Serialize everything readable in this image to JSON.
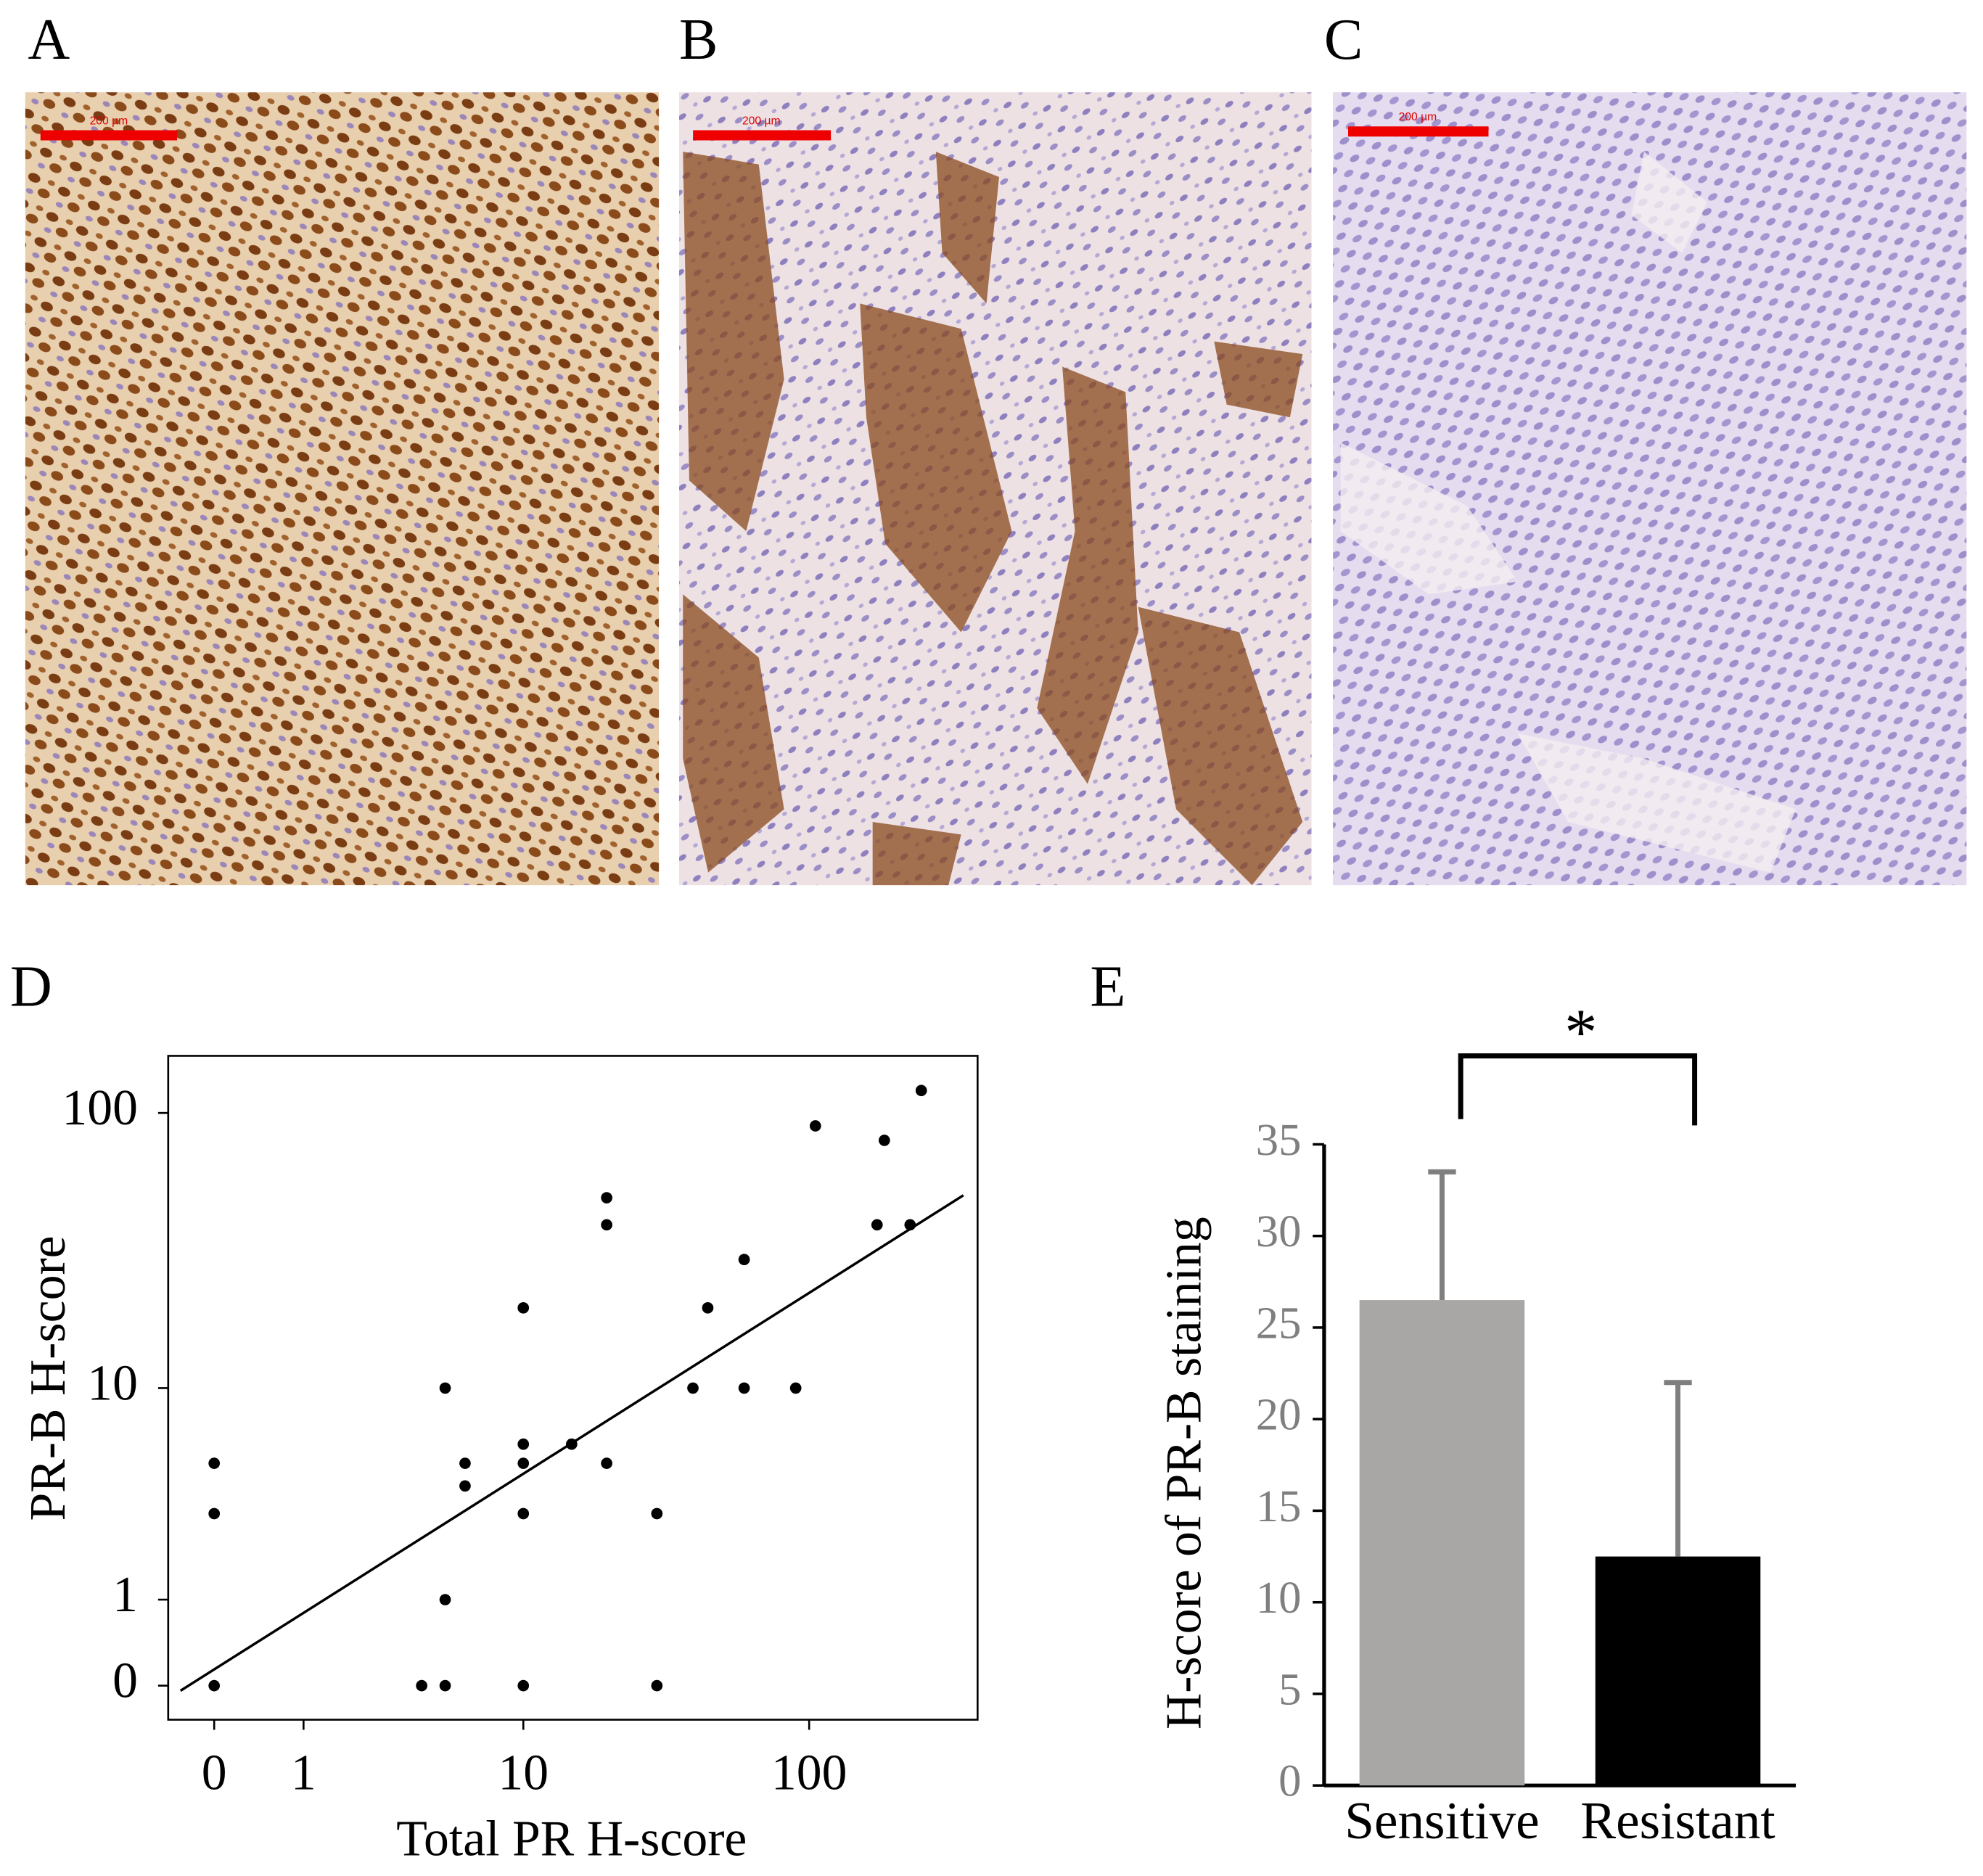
{
  "panels": [
    {
      "label": "A",
      "scale_bar": "200 µm"
    },
    {
      "label": "B",
      "scale_bar": "200 µm"
    },
    {
      "label": "C",
      "scale_bar": "200 µm"
    }
  ],
  "chart_data": [
    {
      "type": "scatter",
      "label": "D",
      "x_label": "Total PR H-score",
      "y_label": "PR-B H-score",
      "scale": "log1p",
      "color": "#000000",
      "x": [
        0,
        0,
        0,
        4,
        5,
        5,
        5,
        6,
        6,
        10,
        10,
        10,
        10,
        10,
        15,
        20,
        20,
        20,
        30,
        30,
        40,
        45,
        60,
        60,
        90,
        105,
        170,
        180,
        220,
        240
      ],
      "values": [
        5,
        3,
        0,
        0,
        0,
        10,
        1,
        5,
        4,
        20,
        6,
        5,
        3,
        0,
        6,
        50,
        40,
        5,
        3,
        0,
        10,
        20,
        30,
        10,
        10,
        90,
        40,
        80,
        40,
        120
      ],
      "trend_line": {
        "x": [
          -0.23,
          333
        ],
        "values": [
          -0.04,
          51
        ]
      },
      "xlim": [
        -0.3,
        372
      ],
      "ylim": [
        -0.24,
        159
      ],
      "xticks": [
        0,
        1,
        10,
        100
      ],
      "yticks": [
        0,
        1,
        10,
        100
      ]
    },
    {
      "type": "bar",
      "label": "E",
      "y_label": "H-score of PR-B staining",
      "categories": [
        "Sensitive",
        "Resistant"
      ],
      "values": [
        26.5,
        12.5
      ],
      "errors": [
        7,
        9.5
      ],
      "colors": [
        "#a9a7a5",
        "#000000"
      ],
      "error_color": "#7f7f7f",
      "annotation": "*",
      "ylim": [
        0,
        35
      ],
      "yticks": [
        0,
        5,
        10,
        15,
        20,
        25,
        30,
        35
      ]
    }
  ]
}
